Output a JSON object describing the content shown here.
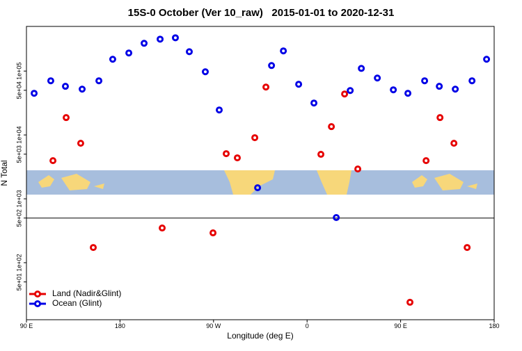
{
  "chart_data": {
    "type": "scatter",
    "title": "15S-0 October (Ver 10_raw)   2015-01-01 to 2020-12-31",
    "x_label": "Longitude (deg E)",
    "y_label": "N Total",
    "log_y": true,
    "xlim": [
      90,
      540
    ],
    "xticks": [
      {
        "value": 90,
        "label": "90 E"
      },
      {
        "value": 180,
        "label": "180"
      },
      {
        "value": 270,
        "label": "90 W"
      },
      {
        "value": 360,
        "label": "0"
      },
      {
        "value": 450,
        "label": "90 E"
      },
      {
        "value": 540,
        "label": "180"
      }
    ],
    "ylim": [
      12.8,
      500000
    ],
    "yticks": [
      {
        "value": 50,
        "label": "5e+01"
      },
      {
        "value": 100,
        "label": "1e+02"
      },
      {
        "value": 500,
        "label": "5e+02"
      },
      {
        "value": 1000,
        "label": "1e+03"
      },
      {
        "value": 5000,
        "label": "5e+03"
      },
      {
        "value": 10000,
        "label": "1e+04"
      },
      {
        "value": 50000,
        "label": "5e+04"
      },
      {
        "value": 100000,
        "label": "1e+05"
      }
    ],
    "hline": 500,
    "legend": "bottom-left",
    "series": [
      {
        "name": "Land (Nadir&Glint)",
        "color": "#e60000",
        "x": [
          115.5,
          128.2,
          142.2,
          154.3,
          220.6,
          269.5,
          282.2,
          292.9,
          309.7,
          320.4,
          373.3,
          383.4,
          396.1,
          408.8,
          459,
          474.5,
          487.9,
          501.3,
          514
        ],
        "values": [
          3960,
          18700,
          7410,
          173,
          349,
          293,
          5090,
          4380,
          9060,
          56200,
          4970,
          13500,
          43800,
          2930,
          24,
          3960,
          18700,
          7410,
          173
        ]
      },
      {
        "name": "Ocean (Glint)",
        "color": "#0000e6",
        "x": [
          97.4,
          113.4,
          127.5,
          143.6,
          159.7,
          173,
          188.5,
          203.2,
          218.6,
          233.3,
          246.7,
          262.1,
          275.5,
          312.4,
          325.8,
          337.2,
          351.9,
          366.6,
          388.1,
          401.5,
          412.2,
          427.6,
          443,
          457,
          473.1,
          487.2,
          502.6,
          518.7,
          532.7
        ],
        "values": [
          44900,
          70500,
          57700,
          52100,
          70500,
          153000,
          192000,
          272000,
          316000,
          332000,
          201000,
          97500,
          24600,
          1490,
          122000,
          207000,
          62200,
          31600,
          509,
          49600,
          110000,
          77800,
          50900,
          44900,
          70500,
          57700,
          52100,
          70500,
          153000
        ]
      }
    ]
  }
}
